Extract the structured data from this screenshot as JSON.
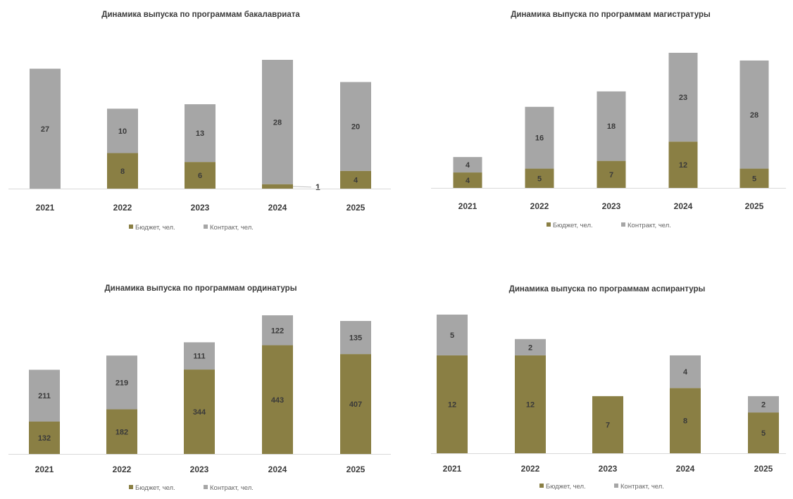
{
  "colors": {
    "budget": "#8a7f44",
    "contract": "#a6a6a6",
    "axis": "#d9d9d9",
    "text": "#3a3a3a"
  },
  "legend": {
    "budget": "Бюджет, чел.",
    "contract": "Контракт, чел."
  },
  "chart_data": [
    {
      "type": "bar",
      "stacked": true,
      "title": "Динамика выпуска по программам бакалавриата",
      "categories": [
        "2021",
        "2022",
        "2023",
        "2024",
        "2025"
      ],
      "series": [
        {
          "name": "Бюджет, чел.",
          "values": [
            0,
            8,
            6,
            1,
            4
          ]
        },
        {
          "name": "Контракт, чел.",
          "values": [
            27,
            10,
            13,
            28,
            20
          ]
        }
      ],
      "legend_position": "bottom",
      "grid": false
    },
    {
      "type": "bar",
      "stacked": true,
      "title": "Динамика выпуска по программам магистратуры",
      "categories": [
        "2021",
        "2022",
        "2023",
        "2024",
        "2025"
      ],
      "series": [
        {
          "name": "Бюджет, чел.",
          "values": [
            4,
            5,
            7,
            12,
            5
          ]
        },
        {
          "name": "Контракт, чел.",
          "values": [
            4,
            16,
            18,
            23,
            28
          ]
        }
      ],
      "legend_position": "bottom",
      "grid": false
    },
    {
      "type": "bar",
      "stacked": true,
      "title": "Динамика выпуска по программам ординатуры",
      "categories": [
        "2021",
        "2022",
        "2023",
        "2024",
        "2025"
      ],
      "series": [
        {
          "name": "Бюджет, чел.",
          "values": [
            132,
            182,
            344,
            443,
            407
          ]
        },
        {
          "name": "Контракт, чел.",
          "values": [
            211,
            219,
            111,
            122,
            135
          ]
        }
      ],
      "legend_position": "bottom",
      "grid": false
    },
    {
      "type": "bar",
      "stacked": true,
      "title": "Динамика выпуска по программам аспирантуры",
      "categories": [
        "2021",
        "2022",
        "2023",
        "2024",
        "2025"
      ],
      "series": [
        {
          "name": "Бюджет, чел.",
          "values": [
            12,
            12,
            7,
            8,
            5
          ]
        },
        {
          "name": "Контракт, чел.",
          "values": [
            5,
            2,
            0,
            4,
            2
          ]
        }
      ],
      "legend_position": "bottom",
      "grid": false
    }
  ]
}
